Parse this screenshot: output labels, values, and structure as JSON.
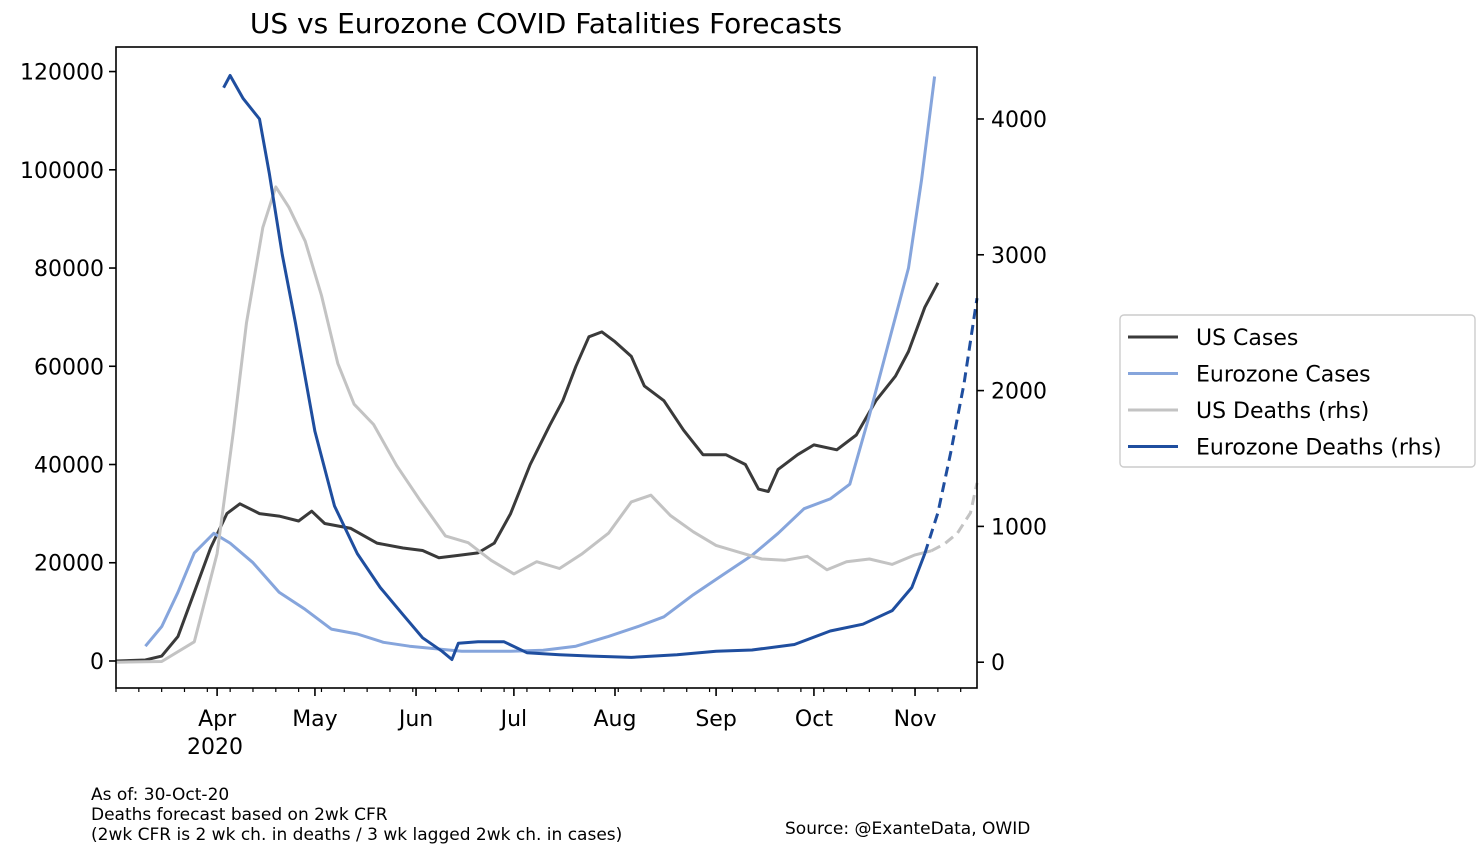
{
  "chart_data": {
    "type": "line",
    "title": "US vs Eurozone COVID Fatalities Forecasts",
    "xlabel": "",
    "ylabel_left": "",
    "ylabel_right": "",
    "x_ticks": [
      "Apr",
      "May",
      "Jun",
      "Jul",
      "Aug",
      "Sep",
      "Oct",
      "Nov"
    ],
    "x_year_label": "2020",
    "x_range": [
      "2020-03-01",
      "2020-11-20"
    ],
    "ylim_left": [
      -5500,
      125000
    ],
    "ylim_right": [
      -190,
      4530
    ],
    "y_ticks_left": [
      "0",
      "20000",
      "40000",
      "60000",
      "80000",
      "100000",
      "120000"
    ],
    "y_ticks_right": [
      "0",
      "1000",
      "2000",
      "3000",
      "4000"
    ],
    "grid": false,
    "legend_position": "right",
    "series": [
      {
        "name": "US Cases",
        "axis": "left",
        "color": "#3a3a3a",
        "style": "solid",
        "points": [
          [
            "2020-03-01",
            0
          ],
          [
            "2020-03-10",
            200
          ],
          [
            "2020-03-15",
            1000
          ],
          [
            "2020-03-20",
            5000
          ],
          [
            "2020-03-25",
            14000
          ],
          [
            "2020-03-30",
            23000
          ],
          [
            "2020-04-04",
            30000
          ],
          [
            "2020-04-08",
            32000
          ],
          [
            "2020-04-14",
            30000
          ],
          [
            "2020-04-20",
            29500
          ],
          [
            "2020-04-26",
            28500
          ],
          [
            "2020-04-30",
            30500
          ],
          [
            "2020-05-04",
            28000
          ],
          [
            "2020-05-12",
            27000
          ],
          [
            "2020-05-20",
            24000
          ],
          [
            "2020-05-28",
            23000
          ],
          [
            "2020-06-03",
            22500
          ],
          [
            "2020-06-08",
            21000
          ],
          [
            "2020-06-14",
            21500
          ],
          [
            "2020-06-20",
            22000
          ],
          [
            "2020-06-25",
            24000
          ],
          [
            "2020-06-30",
            30000
          ],
          [
            "2020-07-06",
            40000
          ],
          [
            "2020-07-12",
            48000
          ],
          [
            "2020-07-16",
            53000
          ],
          [
            "2020-07-20",
            60000
          ],
          [
            "2020-07-24",
            66000
          ],
          [
            "2020-07-28",
            67000
          ],
          [
            "2020-08-01",
            65000
          ],
          [
            "2020-08-06",
            62000
          ],
          [
            "2020-08-10",
            56000
          ],
          [
            "2020-08-16",
            53000
          ],
          [
            "2020-08-22",
            47000
          ],
          [
            "2020-08-28",
            42000
          ],
          [
            "2020-09-04",
            42000
          ],
          [
            "2020-09-10",
            40000
          ],
          [
            "2020-09-14",
            35000
          ],
          [
            "2020-09-17",
            34500
          ],
          [
            "2020-09-20",
            39000
          ],
          [
            "2020-09-26",
            42000
          ],
          [
            "2020-10-01",
            44000
          ],
          [
            "2020-10-08",
            43000
          ],
          [
            "2020-10-14",
            46000
          ],
          [
            "2020-10-20",
            53000
          ],
          [
            "2020-10-26",
            58000
          ],
          [
            "2020-10-30",
            63000
          ],
          [
            "2020-11-04",
            72000
          ],
          [
            "2020-11-08",
            77000
          ]
        ]
      },
      {
        "name": "Eurozone Cases",
        "axis": "left",
        "color": "#86a5dc",
        "style": "solid",
        "points": [
          [
            "2020-03-10",
            3000
          ],
          [
            "2020-03-15",
            7000
          ],
          [
            "2020-03-20",
            14000
          ],
          [
            "2020-03-25",
            22000
          ],
          [
            "2020-03-31",
            26000
          ],
          [
            "2020-04-05",
            24000
          ],
          [
            "2020-04-12",
            20000
          ],
          [
            "2020-04-20",
            14000
          ],
          [
            "2020-04-28",
            10500
          ],
          [
            "2020-05-06",
            6500
          ],
          [
            "2020-05-14",
            5500
          ],
          [
            "2020-05-22",
            3800
          ],
          [
            "2020-05-30",
            3000
          ],
          [
            "2020-06-07",
            2500
          ],
          [
            "2020-06-15",
            2000
          ],
          [
            "2020-06-30",
            2000
          ],
          [
            "2020-07-10",
            2200
          ],
          [
            "2020-07-20",
            3000
          ],
          [
            "2020-07-30",
            5000
          ],
          [
            "2020-08-08",
            7000
          ],
          [
            "2020-08-16",
            9000
          ],
          [
            "2020-08-25",
            13500
          ],
          [
            "2020-09-03",
            17500
          ],
          [
            "2020-09-12",
            21500
          ],
          [
            "2020-09-20",
            26000
          ],
          [
            "2020-09-28",
            31000
          ],
          [
            "2020-10-06",
            33000
          ],
          [
            "2020-10-12",
            36000
          ],
          [
            "2020-10-18",
            50000
          ],
          [
            "2020-10-24",
            65000
          ],
          [
            "2020-10-30",
            80000
          ],
          [
            "2020-11-03",
            98000
          ],
          [
            "2020-11-07",
            119000
          ]
        ]
      },
      {
        "name": "US Deaths (rhs)",
        "axis": "right",
        "color": "#c3c3c3",
        "style": "solid",
        "points": [
          [
            "2020-03-01",
            0
          ],
          [
            "2020-03-15",
            5
          ],
          [
            "2020-03-25",
            150
          ],
          [
            "2020-04-01",
            800
          ],
          [
            "2020-04-06",
            1700
          ],
          [
            "2020-04-10",
            2500
          ],
          [
            "2020-04-15",
            3200
          ],
          [
            "2020-04-19",
            3500
          ],
          [
            "2020-04-23",
            3350
          ],
          [
            "2020-04-28",
            3100
          ],
          [
            "2020-05-03",
            2700
          ],
          [
            "2020-05-08",
            2200
          ],
          [
            "2020-05-13",
            1900
          ],
          [
            "2020-05-19",
            1750
          ],
          [
            "2020-05-26",
            1450
          ],
          [
            "2020-06-02",
            1200
          ],
          [
            "2020-06-10",
            930
          ],
          [
            "2020-06-17",
            880
          ],
          [
            "2020-06-24",
            750
          ],
          [
            "2020-07-01",
            650
          ],
          [
            "2020-07-08",
            740
          ],
          [
            "2020-07-15",
            690
          ],
          [
            "2020-07-22",
            800
          ],
          [
            "2020-07-30",
            950
          ],
          [
            "2020-08-06",
            1180
          ],
          [
            "2020-08-12",
            1230
          ],
          [
            "2020-08-18",
            1080
          ],
          [
            "2020-08-25",
            960
          ],
          [
            "2020-09-01",
            860
          ],
          [
            "2020-09-08",
            810
          ],
          [
            "2020-09-15",
            760
          ],
          [
            "2020-09-22",
            750
          ],
          [
            "2020-09-29",
            780
          ],
          [
            "2020-10-05",
            680
          ],
          [
            "2020-10-11",
            740
          ],
          [
            "2020-10-18",
            760
          ],
          [
            "2020-10-25",
            720
          ],
          [
            "2020-11-01",
            790
          ],
          [
            "2020-11-06",
            820
          ]
        ]
      },
      {
        "name": "US Deaths (rhs) forecast",
        "axis": "right",
        "color": "#c3c3c3",
        "style": "dashed",
        "points": [
          [
            "2020-11-06",
            820
          ],
          [
            "2020-11-10",
            870
          ],
          [
            "2020-11-14",
            950
          ],
          [
            "2020-11-18",
            1100
          ],
          [
            "2020-11-20",
            1320
          ]
        ]
      },
      {
        "name": "Eurozone Deaths (rhs)",
        "axis": "right",
        "color": "#1f4e9f",
        "style": "solid",
        "points": [
          [
            "2020-04-03",
            4230
          ],
          [
            "2020-04-05",
            4320
          ],
          [
            "2020-04-09",
            4150
          ],
          [
            "2020-04-14",
            4000
          ],
          [
            "2020-04-17",
            3600
          ],
          [
            "2020-04-21",
            3000
          ],
          [
            "2020-04-25",
            2500
          ],
          [
            "2020-05-01",
            1700
          ],
          [
            "2020-05-07",
            1150
          ],
          [
            "2020-05-14",
            800
          ],
          [
            "2020-05-21",
            550
          ],
          [
            "2020-05-28",
            350
          ],
          [
            "2020-06-03",
            180
          ],
          [
            "2020-06-09",
            80
          ],
          [
            "2020-06-12",
            20
          ],
          [
            "2020-06-14",
            140
          ],
          [
            "2020-06-20",
            150
          ],
          [
            "2020-06-28",
            150
          ],
          [
            "2020-07-05",
            70
          ],
          [
            "2020-07-15",
            55
          ],
          [
            "2020-07-25",
            45
          ],
          [
            "2020-08-06",
            35
          ],
          [
            "2020-08-20",
            55
          ],
          [
            "2020-09-01",
            80
          ],
          [
            "2020-09-12",
            90
          ],
          [
            "2020-09-25",
            130
          ],
          [
            "2020-10-06",
            230
          ],
          [
            "2020-10-16",
            280
          ],
          [
            "2020-10-25",
            380
          ],
          [
            "2020-10-31",
            550
          ],
          [
            "2020-11-04",
            800
          ]
        ]
      },
      {
        "name": "Eurozone Deaths (rhs) forecast",
        "axis": "right",
        "color": "#1f4e9f",
        "style": "dashed",
        "points": [
          [
            "2020-11-04",
            800
          ],
          [
            "2020-11-08",
            1100
          ],
          [
            "2020-11-12",
            1550
          ],
          [
            "2020-11-16",
            2050
          ],
          [
            "2020-11-20",
            2680
          ]
        ]
      }
    ],
    "legend": [
      {
        "label": "US Cases",
        "color": "#3a3a3a"
      },
      {
        "label": "Eurozone Cases",
        "color": "#86a5dc"
      },
      {
        "label": "US Deaths (rhs)",
        "color": "#c3c3c3"
      },
      {
        "label": "Eurozone Deaths (rhs)",
        "color": "#1f4e9f"
      }
    ]
  },
  "notes": {
    "as_of": "As of: 30-Oct-20",
    "method": "Deaths forecast based on 2wk CFR",
    "definition": "(2wk CFR is 2 wk ch. in deaths / 3 wk lagged 2wk ch. in cases)",
    "source": "Source: @ExanteData, OWID"
  }
}
